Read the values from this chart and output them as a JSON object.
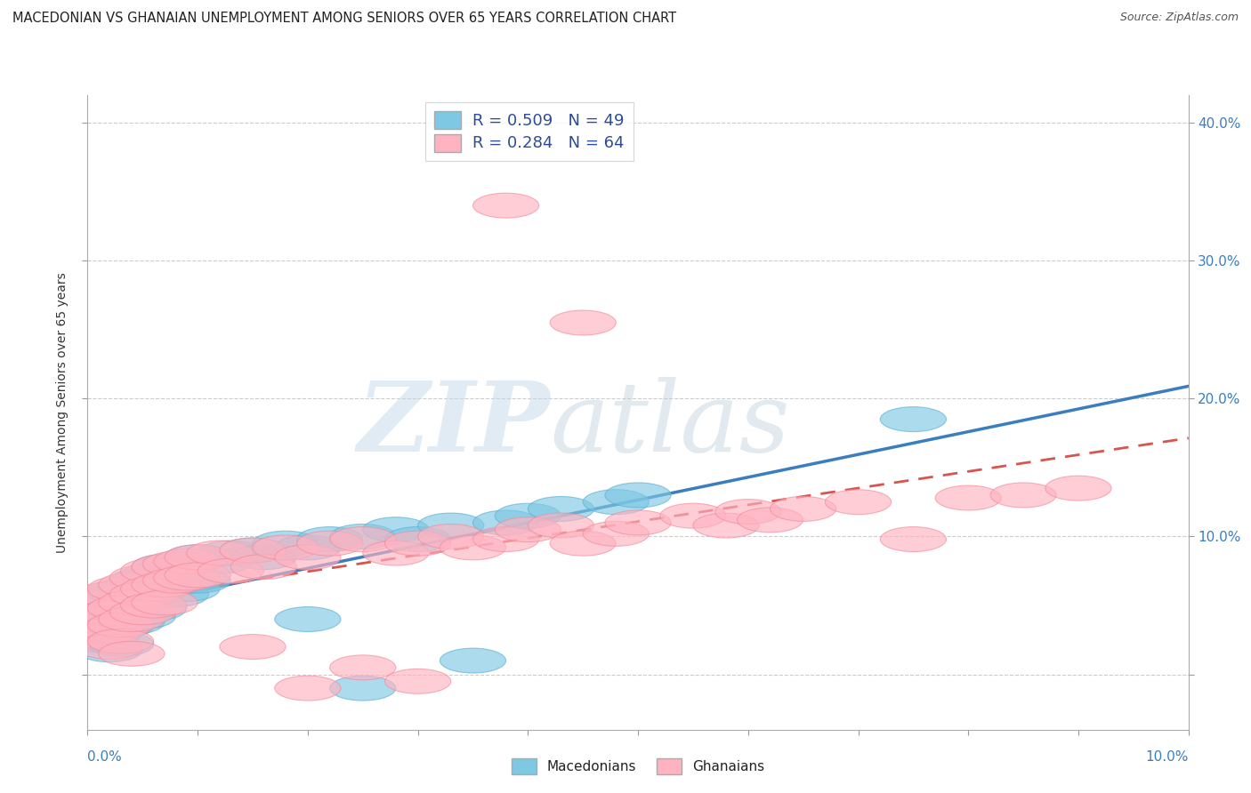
{
  "title": "MACEDONIAN VS GHANAIAN UNEMPLOYMENT AMONG SENIORS OVER 65 YEARS CORRELATION CHART",
  "source": "Source: ZipAtlas.com",
  "ylabel": "Unemployment Among Seniors over 65 years",
  "xlim": [
    0.0,
    0.1
  ],
  "ylim": [
    -0.04,
    0.42
  ],
  "ytick_vals": [
    0.0,
    0.1,
    0.2,
    0.3,
    0.4
  ],
  "macedonian_color": "#7ec8e3",
  "macedonian_edge": "#5aafd6",
  "ghanaian_color": "#ffb3c1",
  "ghanaian_edge": "#f48a9a",
  "macedonian_line_color": "#3a7ebf",
  "ghanaian_line_color": "#d9534f",
  "ghanaian_line_dash": [
    6,
    4
  ],
  "R_mac": 0.509,
  "N_mac": 49,
  "R_gha": 0.284,
  "N_gha": 64,
  "legend_color": "#2b4c9b",
  "title_color": "#222222",
  "source_color": "#555555",
  "axis_label_color": "#333333",
  "tick_label_color": "#3a7ebf",
  "grid_color": "#cccccc",
  "watermark_zip_color": "#d8e8f0",
  "watermark_atlas_color": "#c8d8e8"
}
